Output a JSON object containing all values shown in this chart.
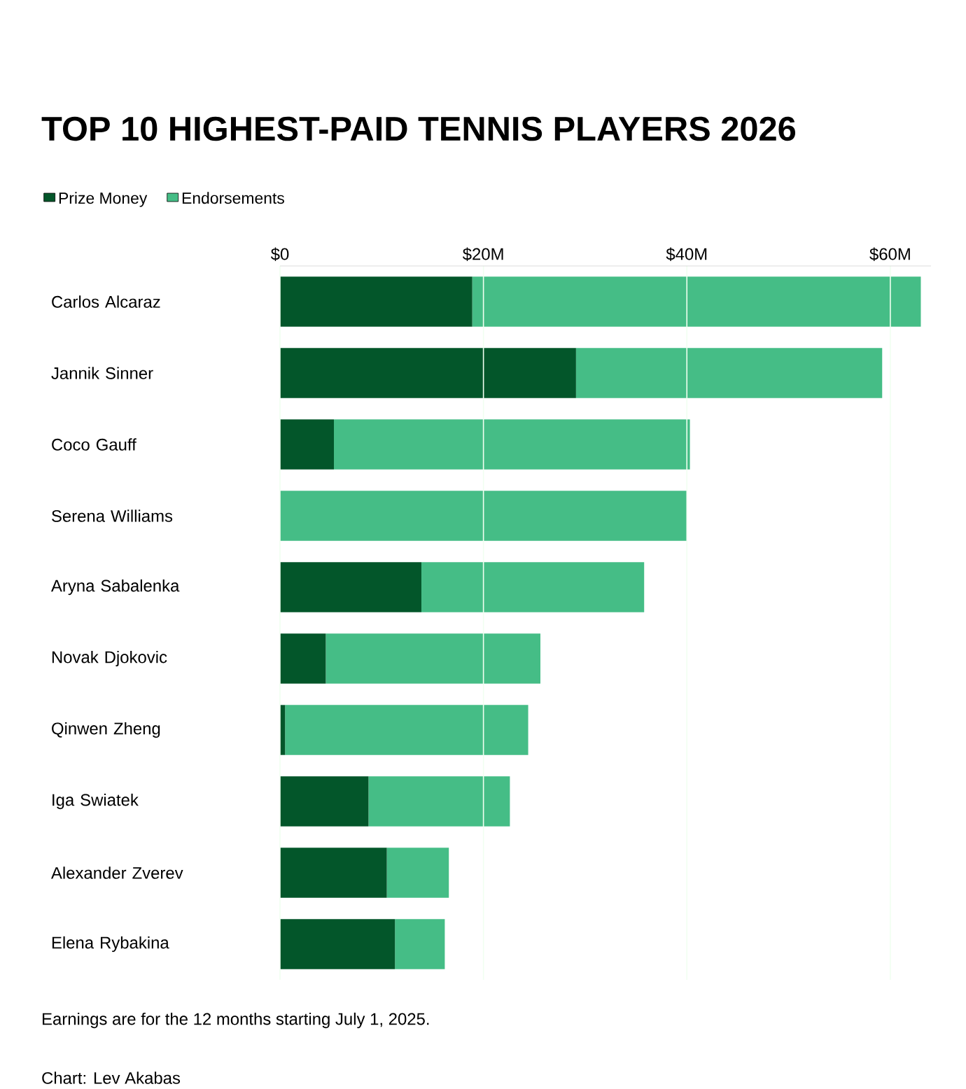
{
  "chart_data": {
    "type": "bar",
    "orientation": "horizontal",
    "stacked": true,
    "title": "TOP 10 HIGHEST-PAID TENNIS PLAYERS 2026",
    "categories": [
      "Carlos Alcaraz",
      "Jannik Sinner",
      "Coco Gauff",
      "Serena Williams",
      "Aryna Sabalenka",
      "Novak Djokovic",
      "Qinwen Zheng",
      "Iga Swiatek",
      "Alexander Zverev",
      "Elena Rybakina"
    ],
    "series": [
      {
        "name": "Prize Money",
        "color": "#03562a",
        "values": [
          18.9,
          29.1,
          5.3,
          0,
          13.9,
          4.5,
          0.5,
          8.7,
          10.5,
          11.3
        ]
      },
      {
        "name": "Endorsements",
        "color": "#45bd86",
        "values": [
          44.1,
          30.1,
          35.0,
          40.0,
          21.9,
          21.1,
          23.9,
          13.9,
          6.1,
          4.9
        ]
      }
    ],
    "xlim": [
      0,
      64
    ],
    "xticks": [
      {
        "value": 0,
        "label": "$0"
      },
      {
        "value": 20,
        "label": "$20M"
      },
      {
        "value": 40,
        "label": "$40M"
      },
      {
        "value": 60,
        "label": "$60M"
      }
    ],
    "grid": "x",
    "legend": "top left",
    "annotations": [
      "Earnings are for the 12 months starting July 1, 2025.",
      "Chart: Lev Akabas"
    ]
  }
}
